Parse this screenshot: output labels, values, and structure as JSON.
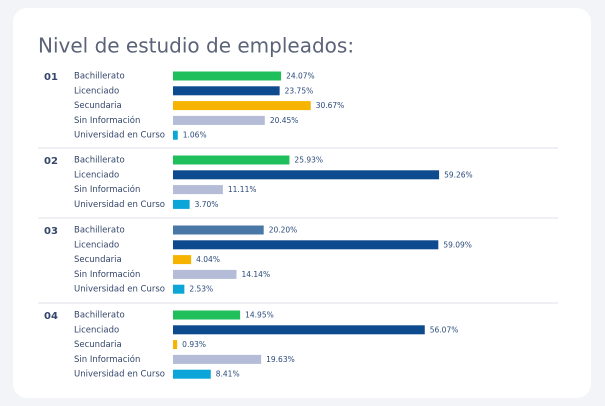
{
  "chart_data": {
    "type": "bar",
    "orientation": "horizontal",
    "title": "Nivel de estudio de empleados:",
    "groups": [
      {
        "label": "01",
        "categories": [
          "Bachillerato",
          "Licenciado",
          "Secundaria",
          "Sin Información",
          "Universidad en Curso"
        ],
        "values": [
          24.07,
          23.75,
          30.67,
          20.45,
          1.06
        ],
        "value_labels": [
          "24.07%",
          "23.75%",
          "30.67%",
          "20.45%",
          "1.06%"
        ],
        "colors": [
          "#1fbf5b",
          "#0e4a8e",
          "#f6b400",
          "#b4bcd8",
          "#0ba5d8"
        ]
      },
      {
        "label": "02",
        "categories": [
          "Bachillerato",
          "Licenciado",
          "Sin Información",
          "Universidad en Curso"
        ],
        "values": [
          25.93,
          59.26,
          11.11,
          3.7
        ],
        "value_labels": [
          "25.93%",
          "59.26%",
          "11.11%",
          "3.70%"
        ],
        "colors": [
          "#1fbf5b",
          "#0e4a8e",
          "#b4bcd8",
          "#0ba5d8"
        ]
      },
      {
        "label": "03",
        "categories": [
          "Bachillerato",
          "Licenciado",
          "Secundaria",
          "Sin Información",
          "Universidad en Curso"
        ],
        "values": [
          20.2,
          59.09,
          4.04,
          14.14,
          2.53
        ],
        "value_labels": [
          "20.20%",
          "59.09%",
          "4.04%",
          "14.14%",
          "2.53%"
        ],
        "colors": [
          "#4a78a6",
          "#0e4a8e",
          "#f6b400",
          "#b4bcd8",
          "#0ba5d8"
        ]
      },
      {
        "label": "04",
        "categories": [
          "Bachillerato",
          "Licenciado",
          "Secundaria",
          "Sin Información",
          "Universidad en Curso"
        ],
        "values": [
          14.95,
          56.07,
          0.93,
          19.63,
          8.41
        ],
        "value_labels": [
          "14.95%",
          "56.07%",
          "0.93%",
          "19.63%",
          "8.41%"
        ],
        "colors": [
          "#1fbf5b",
          "#0e4a8e",
          "#f6b400",
          "#b4bcd8",
          "#0ba5d8"
        ]
      }
    ]
  }
}
